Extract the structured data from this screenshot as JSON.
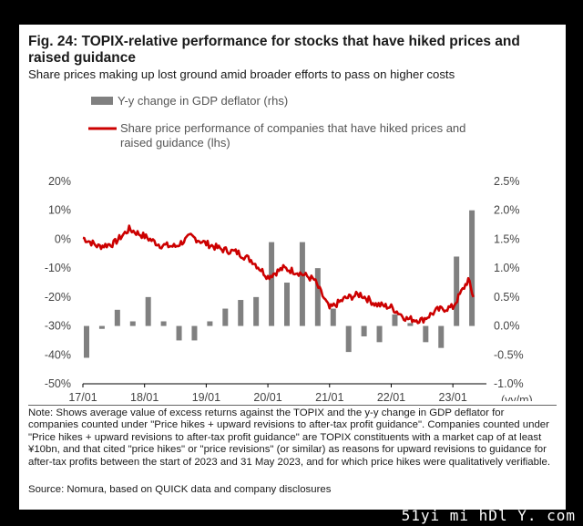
{
  "title": "Fig. 24: TOPIX-relative performance for stocks that have hiked prices and raised guidance",
  "subtitle": "Share prices making up lost ground amid broader efforts to pass on higher costs",
  "note": "Note: Shows average value of excess returns against the TOPIX and the y-y change in GDP deflator for companies counted under \"Price hikes + upward revisions to after-tax profit guidance\". Companies counted under \"Price hikes + upward revisions to after-tax profit guidance\" are TOPIX constituents with a market cap of at least ¥10bn, and that cited \"price hikes\" or \"price revisions\" (or similar) as reasons for upward revisions to guidance for after-tax profits between the start of 2023 and 31 May 2023, and for which price hikes were qualitatively verifiable.",
  "source": "Source: Nomura, based on QUICK data and company disclosures",
  "watermark": "51yi mi hDl Y. com",
  "chart_data": {
    "type": "bar+line",
    "x_unit": "(yy/m)",
    "x_ticks": [
      "17/01",
      "18/01",
      "19/01",
      "20/01",
      "21/01",
      "22/01",
      "23/01"
    ],
    "left_axis": {
      "ylim": [
        -50,
        20
      ],
      "ticks": [
        "20%",
        "10%",
        "0%",
        "-10%",
        "-20%",
        "-30%",
        "-40%",
        "-50%"
      ]
    },
    "right_axis": {
      "ylim": [
        -1.0,
        2.5
      ],
      "ticks": [
        "2.5%",
        "2.0%",
        "1.5%",
        "1.0%",
        "0.5%",
        "0.0%",
        "-0.5%",
        "-1.0%"
      ]
    },
    "series": [
      {
        "name": "Y-y change in GDP deflator (rhs)",
        "type": "bar",
        "axis": "right",
        "color": "#808080",
        "x": [
          "2017-01",
          "2017-04",
          "2017-07",
          "2017-10",
          "2018-01",
          "2018-04",
          "2018-07",
          "2018-10",
          "2019-01",
          "2019-04",
          "2019-07",
          "2019-10",
          "2020-01",
          "2020-04",
          "2020-07",
          "2020-10",
          "2021-01",
          "2021-04",
          "2021-07",
          "2021-10",
          "2022-01",
          "2022-04",
          "2022-07",
          "2022-10",
          "2023-01",
          "2023-04"
        ],
        "values": [
          -0.55,
          -0.05,
          0.28,
          0.08,
          0.5,
          0.08,
          -0.25,
          -0.25,
          0.08,
          0.3,
          0.45,
          0.5,
          1.45,
          0.75,
          1.45,
          1.0,
          0.3,
          -0.45,
          -0.18,
          -0.28,
          0.2,
          0.05,
          -0.28,
          -0.38,
          1.2,
          2.0
        ]
      },
      {
        "name": "Share price performance of companies that have hiked prices and raised guidance (lhs)",
        "type": "line",
        "axis": "left",
        "color": "#cc0000",
        "x": [
          "2017-01",
          "2017-04",
          "2017-07",
          "2017-10",
          "2018-01",
          "2018-04",
          "2018-07",
          "2018-10",
          "2019-01",
          "2019-04",
          "2019-07",
          "2019-10",
          "2020-01",
          "2020-04",
          "2020-07",
          "2020-10",
          "2021-01",
          "2021-04",
          "2021-07",
          "2021-10",
          "2022-01",
          "2022-04",
          "2022-07",
          "2022-10",
          "2023-01",
          "2023-04",
          "2023-05"
        ],
        "values": [
          0.5,
          -2.5,
          -1.5,
          3.5,
          1.0,
          -2.0,
          -2.5,
          1.0,
          -1.5,
          -3.5,
          -4.5,
          -7.5,
          -13.0,
          -10.0,
          -11.5,
          -14.0,
          -24.0,
          -20.5,
          -19.0,
          -22.5,
          -23.5,
          -27.5,
          -28.0,
          -24.5,
          -23.5,
          -14.0,
          -20.0
        ]
      }
    ]
  }
}
